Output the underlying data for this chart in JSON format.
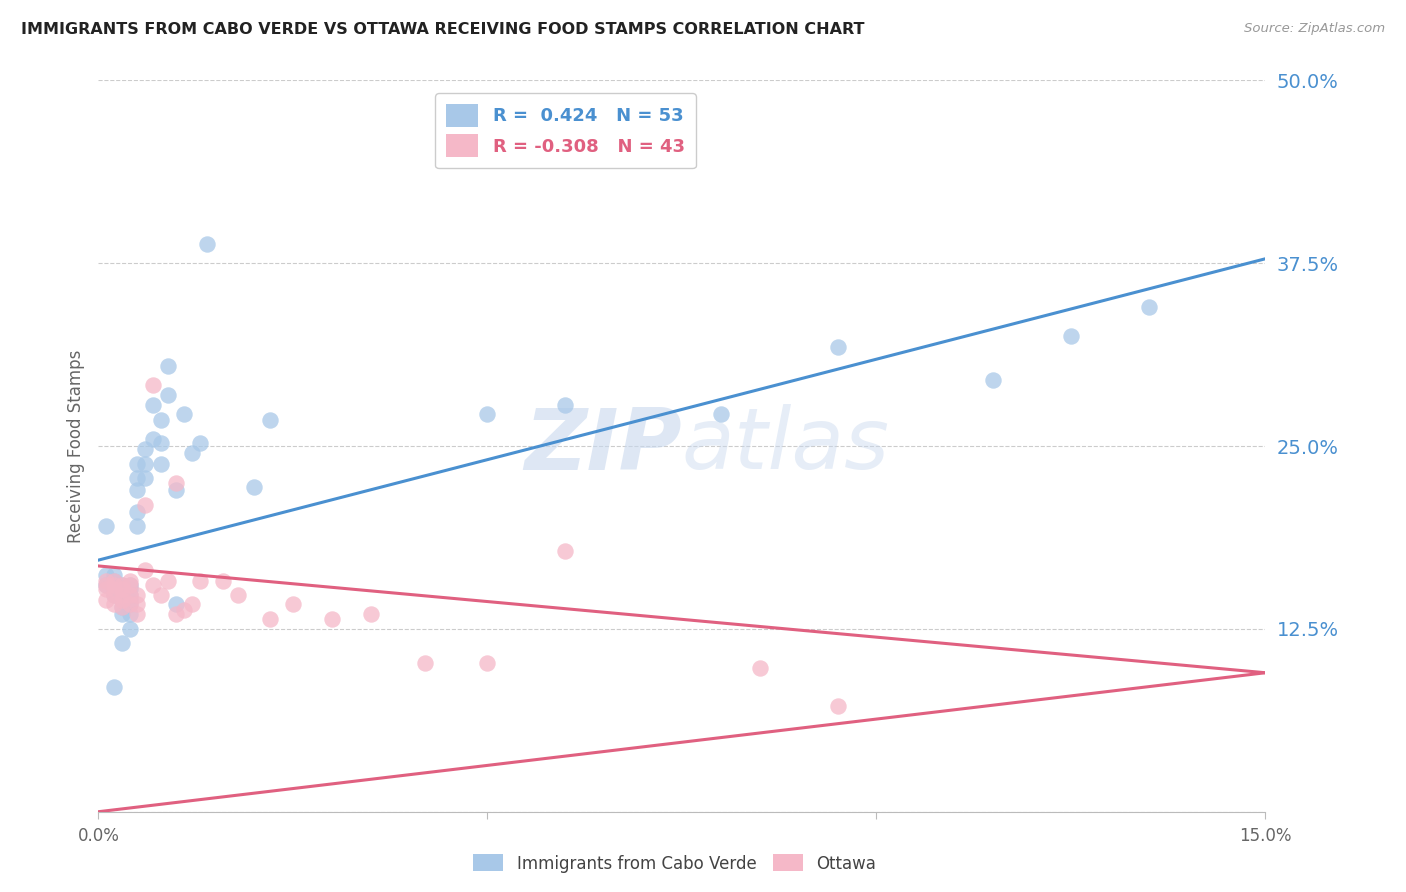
{
  "title": "IMMIGRANTS FROM CABO VERDE VS OTTAWA RECEIVING FOOD STAMPS CORRELATION CHART",
  "source": "Source: ZipAtlas.com",
  "ylabel": "Receiving Food Stamps",
  "xlim": [
    0.0,
    0.15
  ],
  "ylim": [
    0.0,
    0.5
  ],
  "yticks": [
    0.125,
    0.25,
    0.375,
    0.5
  ],
  "yticklabels": [
    "12.5%",
    "25.0%",
    "37.5%",
    "50.0%"
  ],
  "blue_R": 0.424,
  "blue_N": 53,
  "pink_R": -0.308,
  "pink_N": 43,
  "blue_label": "Immigrants from Cabo Verde",
  "pink_label": "Ottawa",
  "blue_color": "#a8c8e8",
  "pink_color": "#f5b8c8",
  "blue_line_color": "#4a90d0",
  "pink_line_color": "#e06080",
  "watermark_color": "#c8d8ee",
  "background_color": "#ffffff",
  "blue_line_x0": 0.0,
  "blue_line_y0": 0.172,
  "blue_line_x1": 0.15,
  "blue_line_y1": 0.378,
  "pink_line_x0": 0.0,
  "pink_line_y0": 0.168,
  "pink_line_x1": 0.15,
  "pink_line_y1": 0.095,
  "blue_scatter_x": [
    0.001,
    0.001,
    0.001,
    0.002,
    0.002,
    0.002,
    0.002,
    0.002,
    0.002,
    0.003,
    0.003,
    0.003,
    0.003,
    0.003,
    0.003,
    0.003,
    0.004,
    0.004,
    0.004,
    0.004,
    0.004,
    0.004,
    0.004,
    0.005,
    0.005,
    0.005,
    0.005,
    0.005,
    0.006,
    0.006,
    0.006,
    0.007,
    0.007,
    0.008,
    0.008,
    0.008,
    0.009,
    0.009,
    0.01,
    0.01,
    0.011,
    0.012,
    0.013,
    0.014,
    0.02,
    0.022,
    0.05,
    0.06,
    0.08,
    0.095,
    0.115,
    0.125,
    0.135
  ],
  "blue_scatter_y": [
    0.195,
    0.162,
    0.155,
    0.162,
    0.158,
    0.155,
    0.152,
    0.148,
    0.085,
    0.155,
    0.152,
    0.148,
    0.145,
    0.14,
    0.135,
    0.115,
    0.155,
    0.152,
    0.148,
    0.145,
    0.142,
    0.135,
    0.125,
    0.238,
    0.228,
    0.22,
    0.205,
    0.195,
    0.248,
    0.238,
    0.228,
    0.278,
    0.255,
    0.268,
    0.252,
    0.238,
    0.305,
    0.285,
    0.22,
    0.142,
    0.272,
    0.245,
    0.252,
    0.388,
    0.222,
    0.268,
    0.272,
    0.278,
    0.272,
    0.318,
    0.295,
    0.325,
    0.345
  ],
  "pink_scatter_x": [
    0.001,
    0.001,
    0.001,
    0.001,
    0.002,
    0.002,
    0.002,
    0.002,
    0.002,
    0.003,
    0.003,
    0.003,
    0.003,
    0.003,
    0.004,
    0.004,
    0.004,
    0.004,
    0.005,
    0.005,
    0.005,
    0.006,
    0.006,
    0.007,
    0.007,
    0.008,
    0.009,
    0.01,
    0.01,
    0.011,
    0.012,
    0.013,
    0.016,
    0.018,
    0.022,
    0.025,
    0.03,
    0.035,
    0.042,
    0.05,
    0.06,
    0.085,
    0.095
  ],
  "pink_scatter_y": [
    0.158,
    0.155,
    0.152,
    0.145,
    0.158,
    0.155,
    0.152,
    0.148,
    0.142,
    0.155,
    0.152,
    0.148,
    0.145,
    0.14,
    0.158,
    0.155,
    0.148,
    0.142,
    0.148,
    0.142,
    0.135,
    0.21,
    0.165,
    0.292,
    0.155,
    0.148,
    0.158,
    0.225,
    0.135,
    0.138,
    0.142,
    0.158,
    0.158,
    0.148,
    0.132,
    0.142,
    0.132,
    0.135,
    0.102,
    0.102,
    0.178,
    0.098,
    0.072
  ]
}
